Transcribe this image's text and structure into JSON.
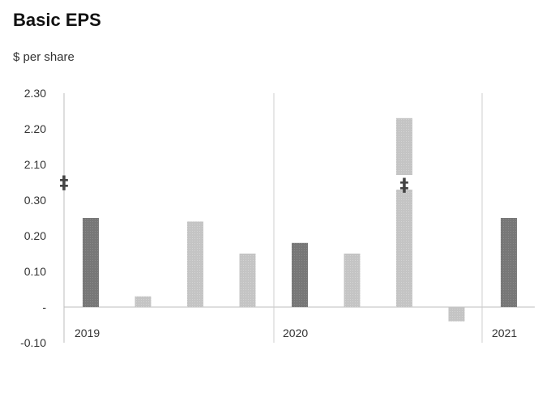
{
  "chart_data": {
    "type": "bar",
    "title": "Basic EPS",
    "ylabel": "$ per share",
    "y_ticks": [
      "2.30",
      "2.20",
      "2.10",
      "0.30",
      "0.20",
      "0.10",
      "-",
      "-0.10"
    ],
    "axis_break": true,
    "break_symbol": "‡",
    "periods": [
      "2019",
      "2020",
      "2021"
    ],
    "bars": [
      {
        "period": "2019",
        "value": 0.25,
        "kind": "annual"
      },
      {
        "period": "2019",
        "value": 0.03,
        "kind": "quarter"
      },
      {
        "period": "2019",
        "value": 0.24,
        "kind": "quarter"
      },
      {
        "period": "2019",
        "value": 0.15,
        "kind": "quarter"
      },
      {
        "period": "2020",
        "value": 0.18,
        "kind": "annual"
      },
      {
        "period": "2020",
        "value": 0.15,
        "kind": "quarter"
      },
      {
        "period": "2020",
        "value": 2.23,
        "kind": "quarter",
        "broken": true
      },
      {
        "period": "2020",
        "value": -0.04,
        "kind": "quarter"
      },
      {
        "period": "2021",
        "value": 0.25,
        "kind": "annual"
      }
    ],
    "colors": {
      "annual": "#777777",
      "quarter": "#c4c4c4",
      "axis": "#bdbdbd"
    },
    "grid": false
  }
}
